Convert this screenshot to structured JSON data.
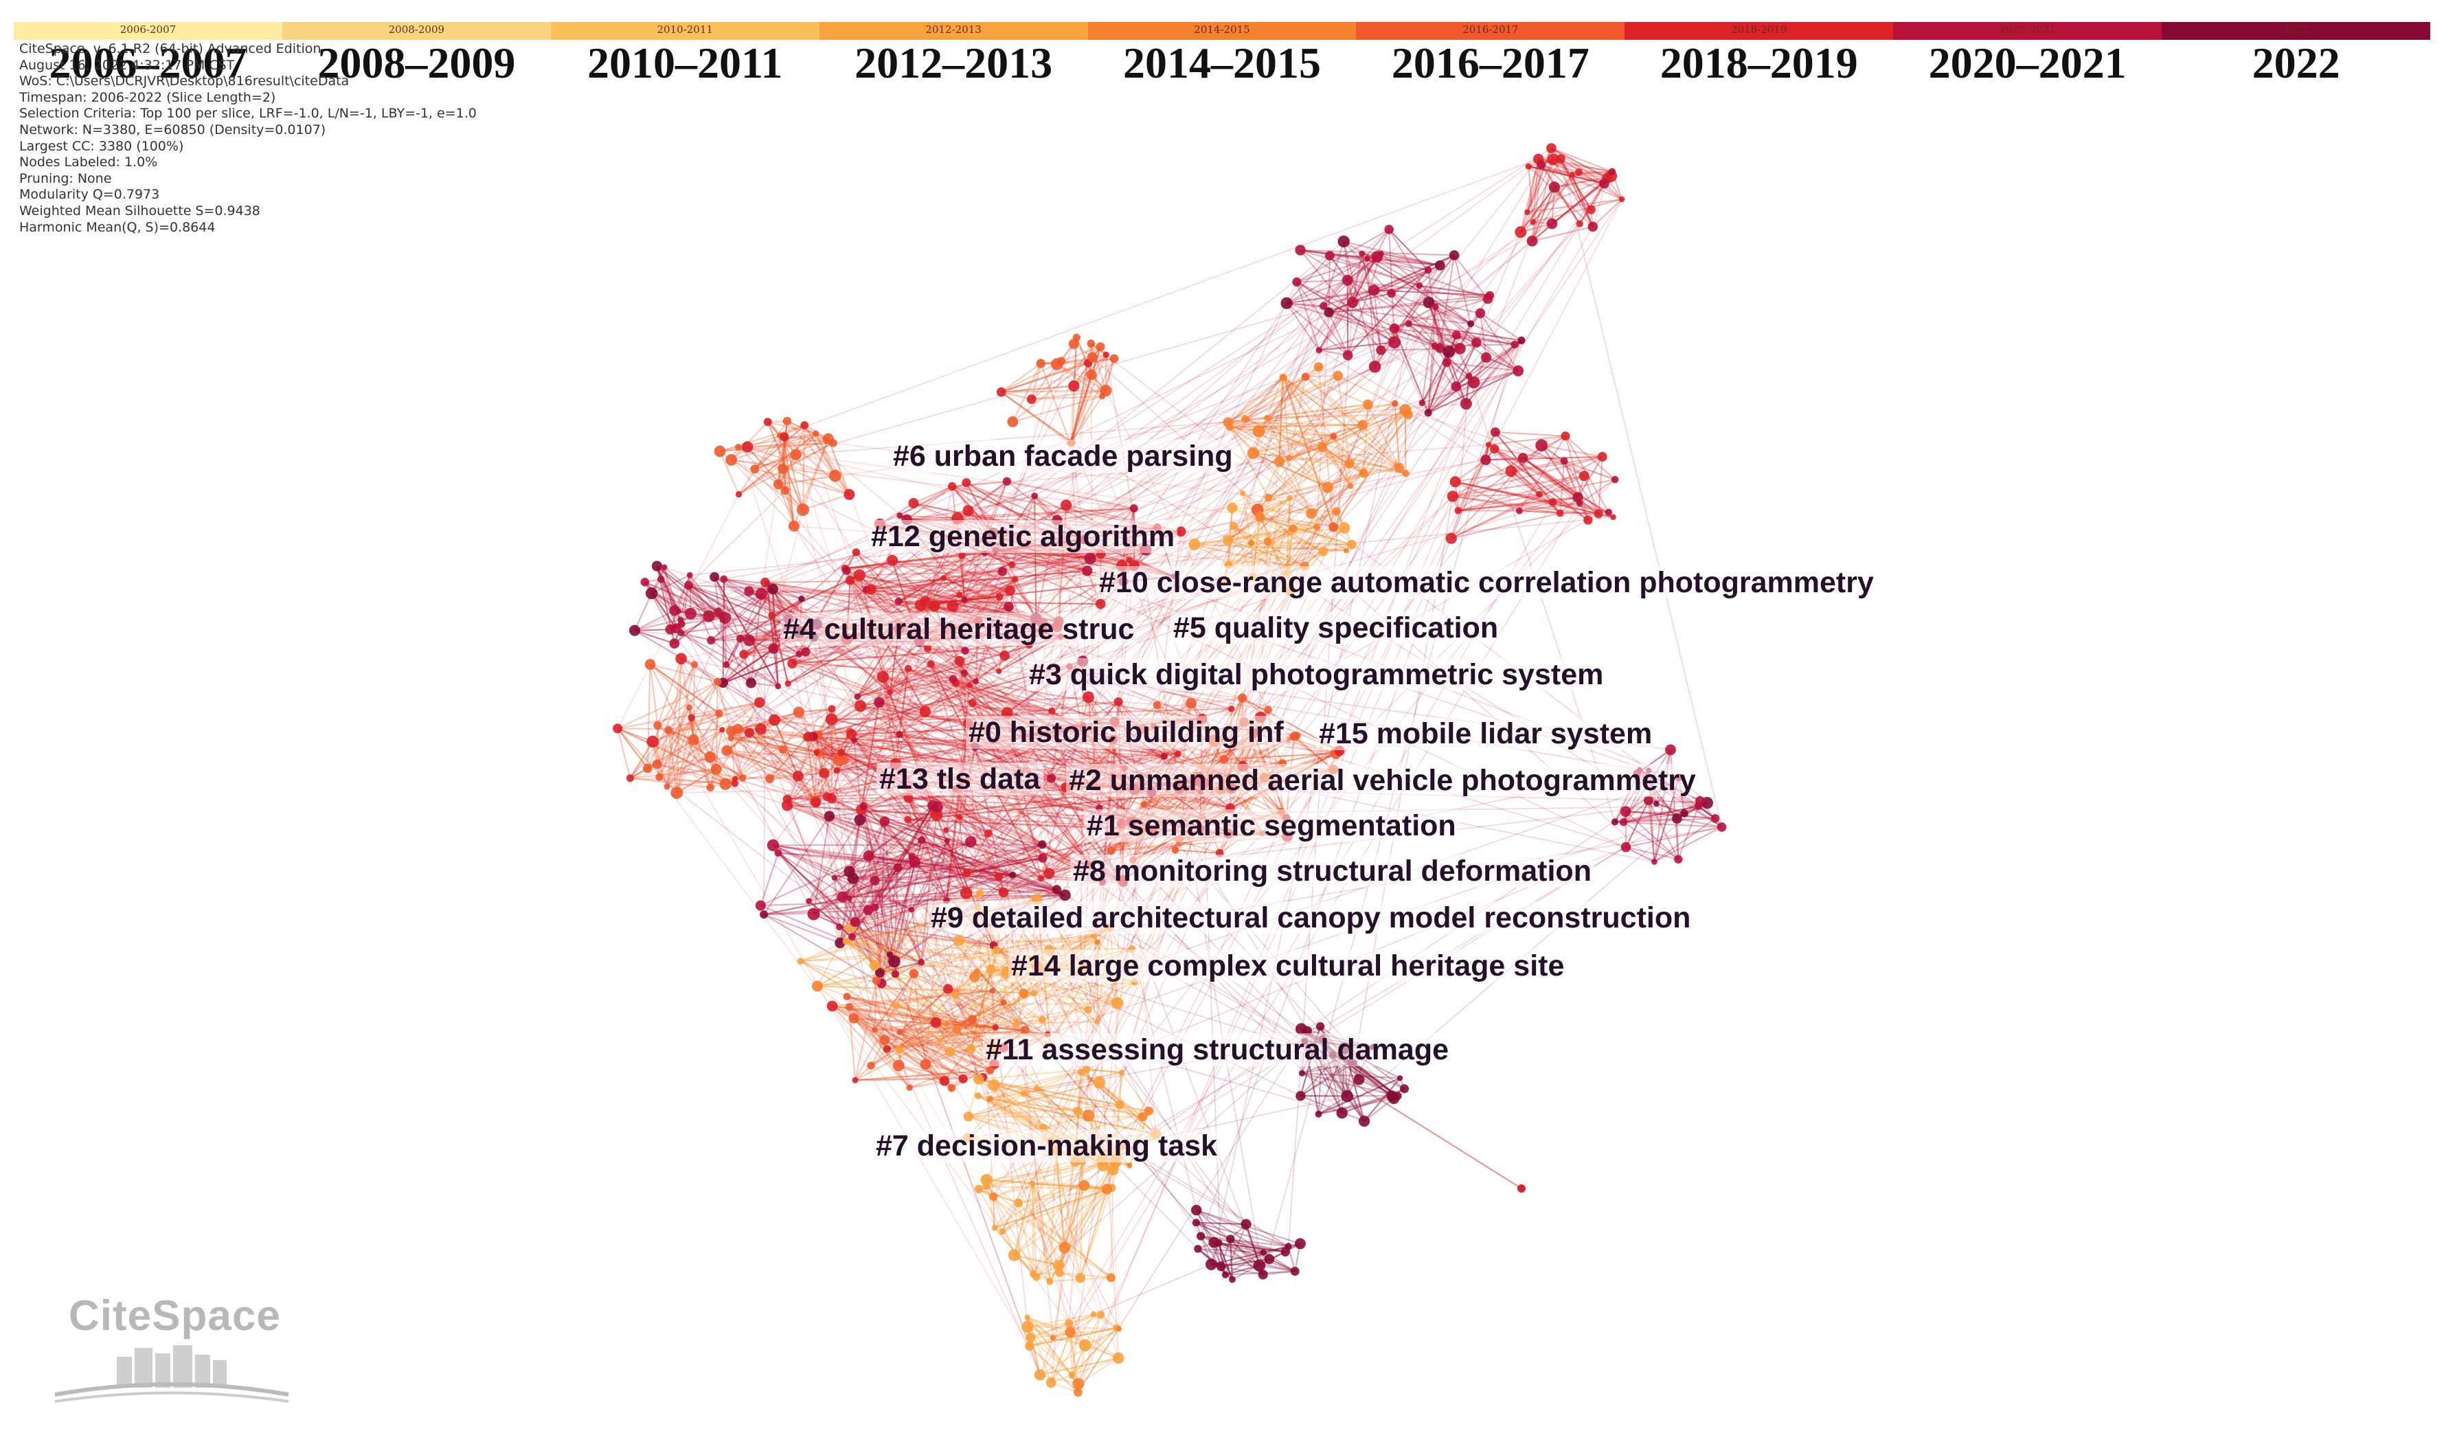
{
  "timeline": {
    "slices": [
      {
        "small": "2006-2007",
        "big": "2006–2007",
        "color": "#fdeca2"
      },
      {
        "small": "2008-2009",
        "big": "2008–2009",
        "color": "#fbd682"
      },
      {
        "small": "2010-2011",
        "big": "2010–2011",
        "color": "#fbc05a"
      },
      {
        "small": "2012-2013",
        "big": "2012–2013",
        "color": "#f9a13d"
      },
      {
        "small": "2014-2015",
        "big": "2014–2015",
        "color": "#f7822e"
      },
      {
        "small": "2016-2017",
        "big": "2016–2017",
        "color": "#f05a2c"
      },
      {
        "small": "2018-2019",
        "big": "2018–2019",
        "color": "#dc2128"
      },
      {
        "small": "2020-2021",
        "big": "2020–2021",
        "color": "#b8123a"
      },
      {
        "small": "2022",
        "big": "2022",
        "color": "#860a33"
      }
    ]
  },
  "info_lines": [
    "CiteSpace, v. 6.1.R2 (64-bit) Advanced Edition",
    "August 16, 2022 4:32:17 PM CST",
    "WoS: C:\\Users\\DCRJVR\\Desktop\\816result\\citeData",
    "Timespan: 2006-2022 (Slice Length=2)",
    "Selection Criteria: Top 100 per slice, LRF=-1.0, L/N=-1, LBY=-1, e=1.0",
    "Network: N=3380, E=60850 (Density=0.0107)",
    "Largest CC: 3380 (100%)",
    "Nodes Labeled: 1.0%",
    "Pruning: None",
    "Modularity Q=0.7973",
    "Weighted Mean Silhouette S=0.9438",
    "Harmonic Mean(Q, S)=0.8644"
  ],
  "clusters": [
    {
      "id": "c6",
      "label": "#6 urban facade parsing"
    },
    {
      "id": "c12",
      "label": "#12 genetic algorithm"
    },
    {
      "id": "c10",
      "label": "#10 close-range automatic correlation photogrammetry"
    },
    {
      "id": "c4",
      "label": "#4 cultural heritage struc"
    },
    {
      "id": "c5",
      "label": "#5 quality specification"
    },
    {
      "id": "c3",
      "label": "#3 quick digital photogrammetric system"
    },
    {
      "id": "c0",
      "label": "#0 historic building inf"
    },
    {
      "id": "c15",
      "label": "#15 mobile lidar system"
    },
    {
      "id": "c13",
      "label": "#13 tls data"
    },
    {
      "id": "c2",
      "label": "#2 unmanned aerial vehicle photogrammetry"
    },
    {
      "id": "c1",
      "label": "#1 semantic segmentation"
    },
    {
      "id": "c8",
      "label": "#8 monitoring structural deformation"
    },
    {
      "id": "c9",
      "label": "#9 detailed architectural canopy model reconstruction"
    },
    {
      "id": "c14",
      "label": "#14 large complex cultural heritage site"
    },
    {
      "id": "c11",
      "label": "#11 assessing structural damage"
    },
    {
      "id": "c7",
      "label": "#7 decision-making task"
    }
  ],
  "logo": {
    "text": "CiteSpace"
  }
}
